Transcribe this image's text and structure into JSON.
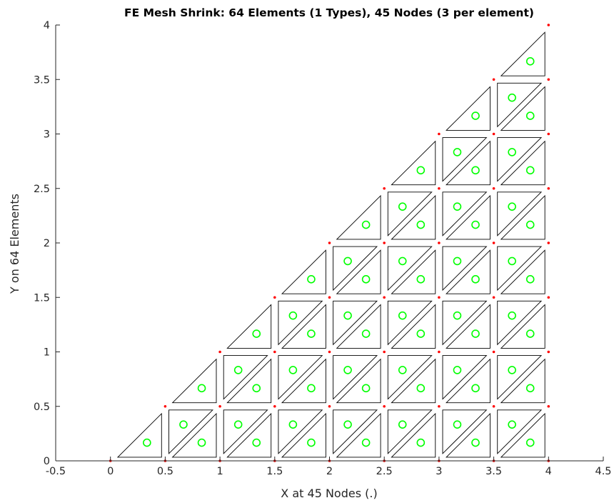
{
  "chart_data": {
    "type": "scatter",
    "title": "FE Mesh Shrink: 64 Elements (1 Types), 45 Nodes (3 per element)",
    "xlabel": "X at 45 Nodes (.)",
    "ylabel": "Y on 64 Elements",
    "xlim": [
      -0.5,
      4.5
    ],
    "ylim": [
      0,
      4
    ],
    "xticks": [
      "-0.5",
      "0",
      "0.5",
      "1",
      "1.5",
      "2",
      "2.5",
      "3",
      "3.5",
      "4",
      "4.5"
    ],
    "yticks": [
      "0",
      "0.5",
      "1",
      "1.5",
      "2",
      "2.5",
      "3",
      "3.5",
      "4"
    ],
    "grid": false,
    "mesh": {
      "domain": "triangle with vertices (0,0), (4,0), (4,4)",
      "divisions": 8,
      "spacing": 0.5,
      "element_type": "3-node triangle",
      "element_count": 64,
      "node_count": 45,
      "shrink_factor": 0.8
    },
    "series": [
      {
        "name": "nodes",
        "marker": "dot",
        "color": "#ff0000"
      },
      {
        "name": "elements",
        "marker": "shrunk-triangle-outline",
        "color": "#000000"
      },
      {
        "name": "element centroids",
        "marker": "circle",
        "color": "#00ff00"
      }
    ]
  }
}
